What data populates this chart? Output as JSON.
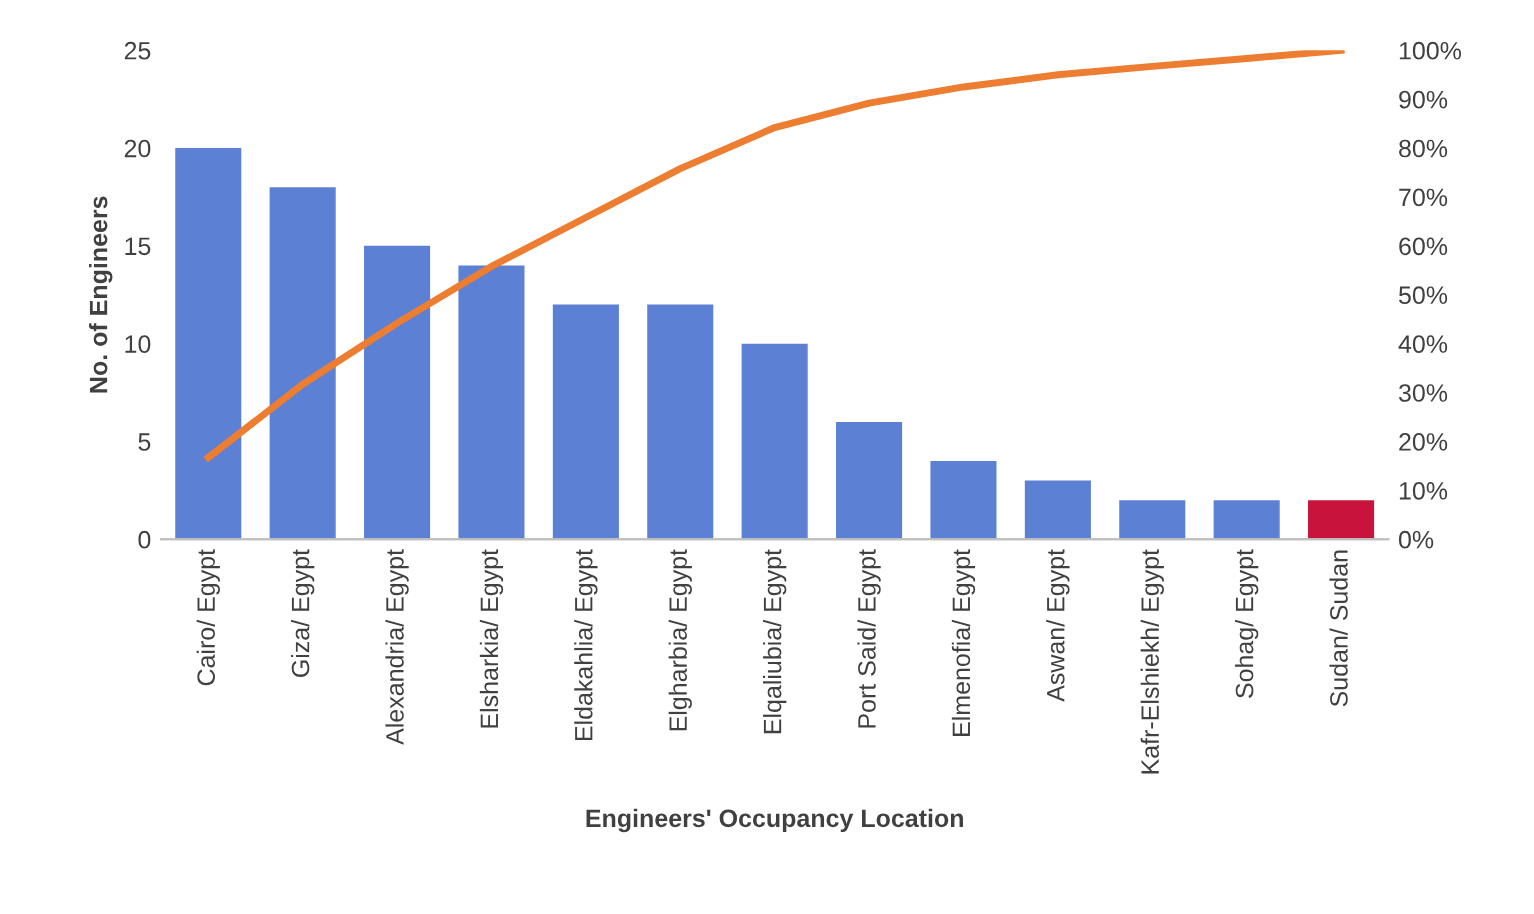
{
  "chart_data": {
    "type": "bar",
    "xlabel": "Engineers' Occupancy Location",
    "ylabel": "No. of Engineers",
    "categories": [
      "Cairo/ Egypt",
      "Giza/ Egypt",
      "Alexandria/ Egypt",
      "Elsharkia/ Egypt",
      "Eldakahlia/ Egypt",
      "Elgharbia/ Egypt",
      "Elqaliubia/ Egypt",
      "Port Said/ Egypt",
      "Elmenofia/ Egypt",
      "Aswan/ Egypt",
      "Kafr-Elshiekh/ Egypt",
      "Sohag/ Egypt",
      "Sudan/ Sudan"
    ],
    "series": [
      {
        "values": [
          20,
          18,
          15,
          14,
          12,
          12,
          10,
          6,
          4,
          3,
          2,
          2,
          2
        ],
        "colors": [
          "#5b80d4",
          "#5b80d4",
          "#5b80d4",
          "#5b80d4",
          "#5b80d4",
          "#5b80d4",
          "#5b80d4",
          "#5b80d4",
          "#5b80d4",
          "#5b80d4",
          "#5b80d4",
          "#5b80d4",
          "#c8143c"
        ]
      },
      {
        "type": "line",
        "axis": "y2",
        "color": "#ed7d31",
        "values": [
          16.7,
          31.7,
          44.2,
          55.8,
          65.8,
          75.8,
          84.2,
          89.2,
          92.5,
          95,
          96.7,
          98.3,
          100
        ]
      }
    ],
    "ylim": [
      0,
      25
    ],
    "yticks": [
      0,
      5,
      10,
      15,
      20,
      25
    ],
    "y2lim": [
      0,
      100
    ],
    "y2ticks": [
      {
        "value": 0,
        "label": "0%"
      },
      {
        "value": 10,
        "label": "10%"
      },
      {
        "value": 20,
        "label": "20%"
      },
      {
        "value": 30,
        "label": "30%"
      },
      {
        "value": 40,
        "label": "40%"
      },
      {
        "value": 50,
        "label": "50%"
      },
      {
        "value": 60,
        "label": "60%"
      },
      {
        "value": 70,
        "label": "70%"
      },
      {
        "value": 80,
        "label": "80%"
      },
      {
        "value": 90,
        "label": "90%"
      },
      {
        "value": 100,
        "label": "100%"
      }
    ],
    "grid": false,
    "legend": false
  }
}
